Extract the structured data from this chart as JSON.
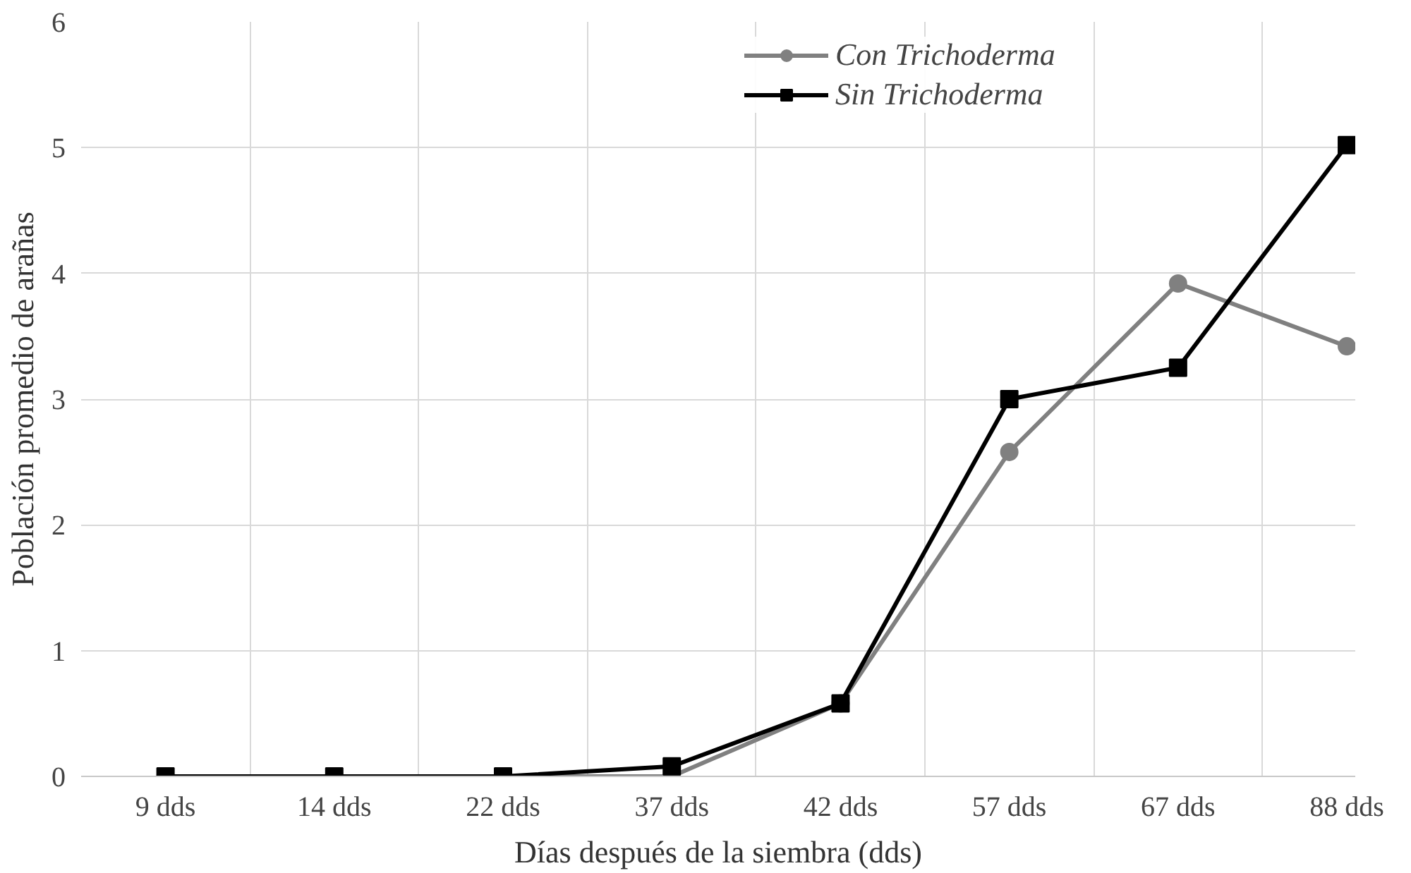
{
  "chart_data": {
    "type": "line",
    "xlabel": "Días después de la siembra (dds)",
    "ylabel": "Población promedio de arañas",
    "categories": [
      "9 dds",
      "14 dds",
      "22 dds",
      "37 dds",
      "42 dds",
      "57 dds",
      "67 dds",
      "88 dds"
    ],
    "series": [
      {
        "name": "Con Trichoderma",
        "color": "#808080",
        "marker": "circle",
        "values": [
          0,
          0,
          0,
          0,
          0.58,
          2.58,
          3.92,
          3.42
        ]
      },
      {
        "name": "Sin Trichoderma",
        "color": "#000000",
        "marker": "square",
        "values": [
          0,
          0,
          0,
          0.08,
          0.58,
          3.0,
          3.25,
          5.02
        ]
      }
    ],
    "ylim": [
      0,
      6
    ],
    "yticks": [
      0,
      1,
      2,
      3,
      4,
      5,
      6
    ],
    "grid": true,
    "legend": "top right"
  }
}
